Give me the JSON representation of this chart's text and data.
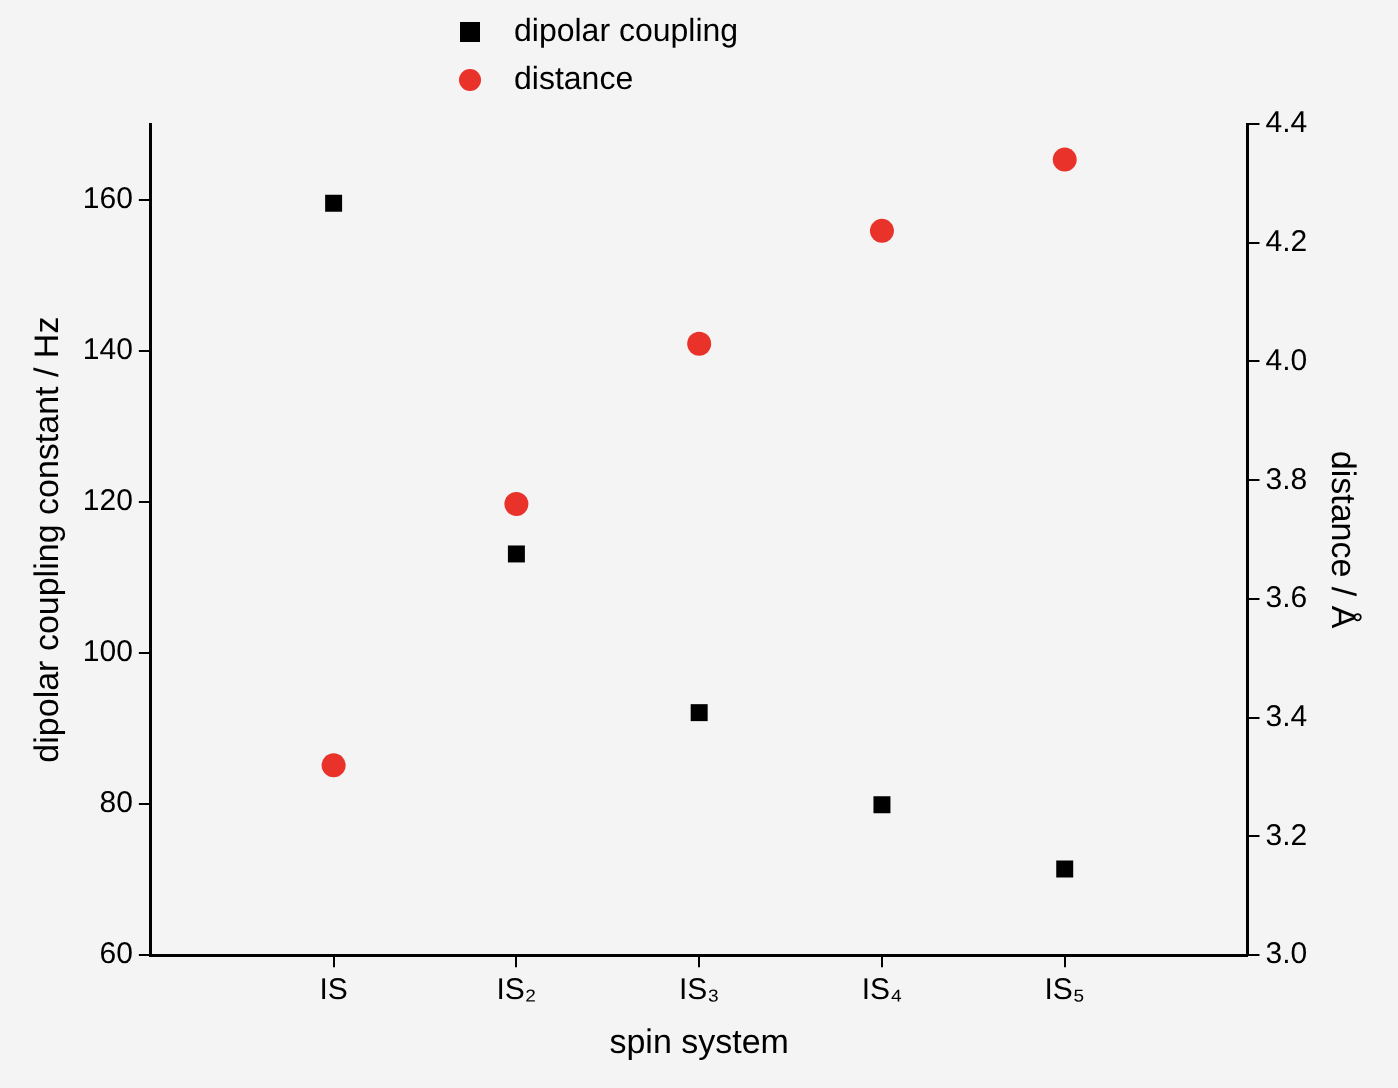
{
  "chart_data": {
    "type": "scatter",
    "xlabel": "spin system",
    "ylabel": "dipolar coupling constant / Hz",
    "y2label": "distance / Å",
    "categories": [
      "IS",
      "IS₂",
      "IS₃",
      "IS₄",
      "IS₅"
    ],
    "series": [
      {
        "name": "dipolar coupling",
        "color": "#000000",
        "marker": "square",
        "values": [
          159.5,
          113.1,
          92.1,
          79.9,
          71.4
        ]
      },
      {
        "name": "distance",
        "color": "#e8322a",
        "marker": "circle",
        "axis": "y2",
        "values": [
          3.32,
          3.76,
          4.03,
          4.22,
          4.34
        ]
      }
    ],
    "ylim": [
      60,
      170
    ],
    "yticks": [
      60,
      80,
      100,
      120,
      140,
      160
    ],
    "y2lim": [
      3.0,
      4.4
    ],
    "y2ticks": [
      {
        "value": 3,
        "label": "3.0"
      },
      3.2,
      3.4,
      3.6,
      3.8,
      {
        "value": 4,
        "label": "4.0"
      },
      4.2,
      4.4
    ],
    "legend": "top",
    "grid": false
  }
}
